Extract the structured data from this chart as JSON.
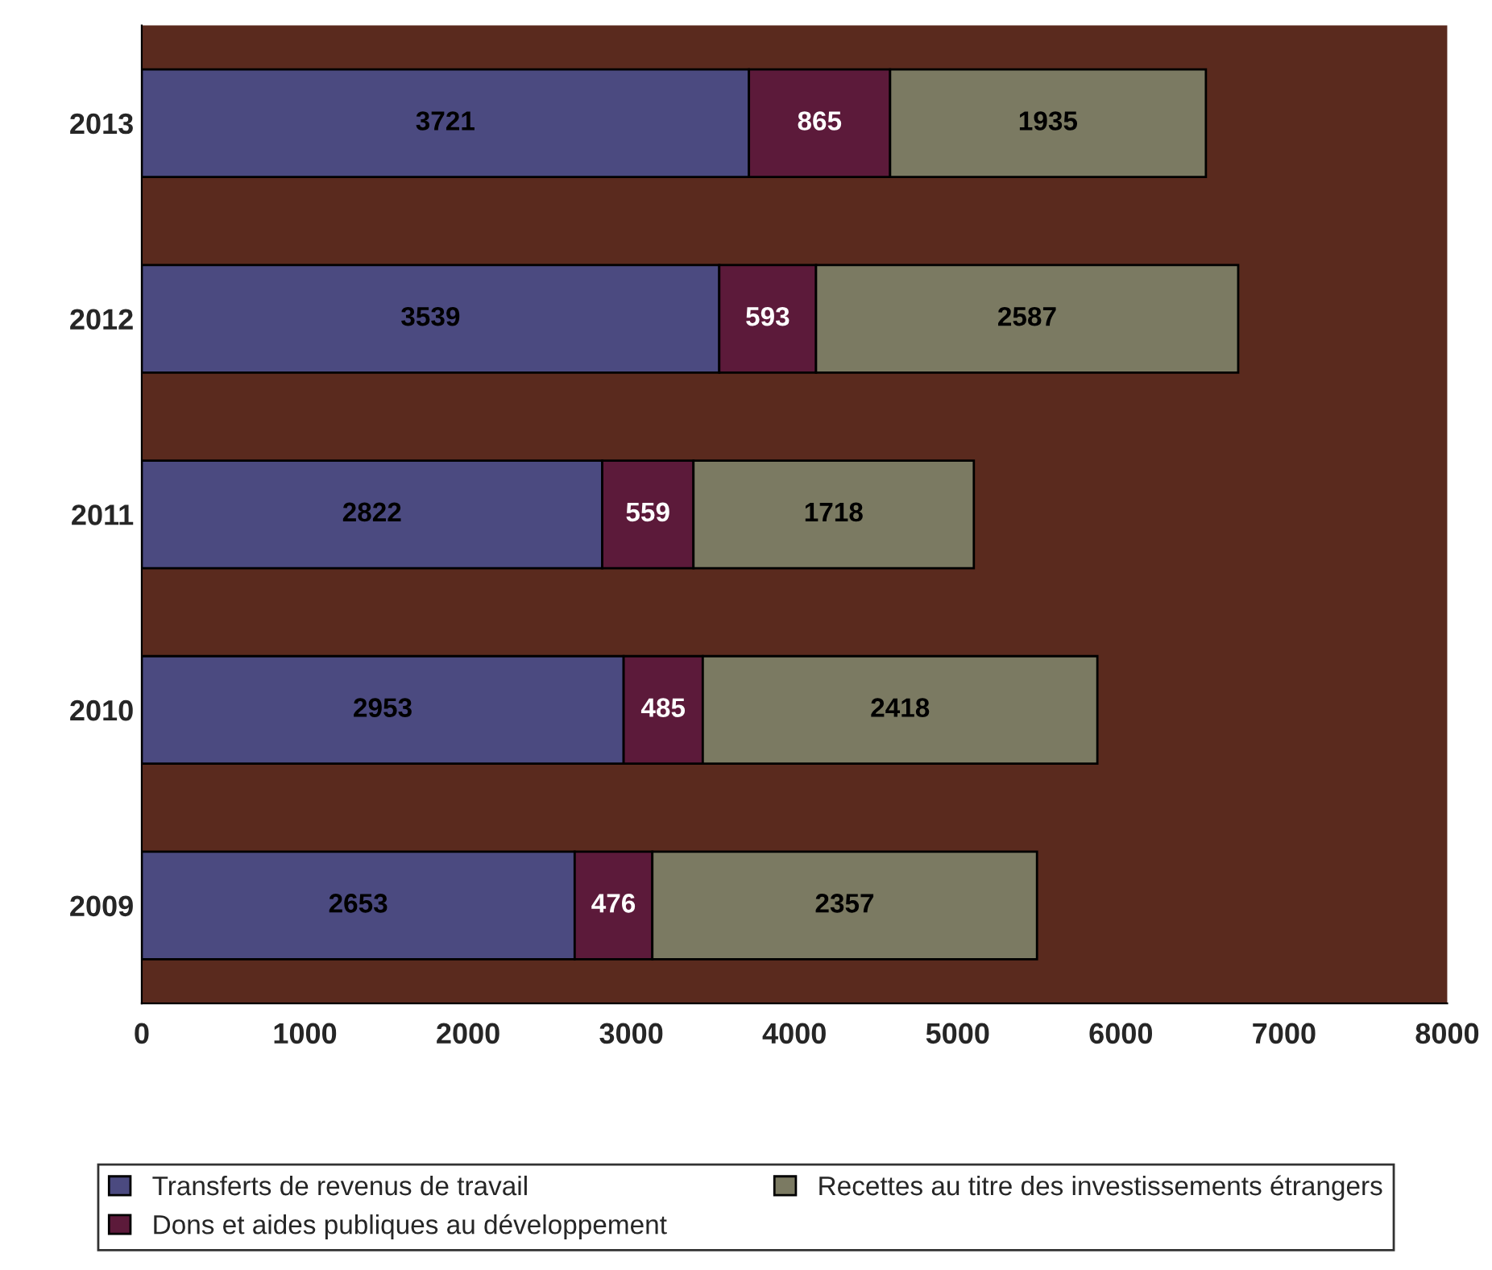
{
  "chart_data": {
    "type": "bar",
    "orientation": "horizontal",
    "stacked": true,
    "categories": [
      "2013",
      "2012",
      "2011",
      "2010",
      "2009"
    ],
    "series": [
      {
        "name": "Transferts de revenus de travail",
        "color": "#4b4a80",
        "values": [
          3721,
          3539,
          2822,
          2953,
          2653
        ]
      },
      {
        "name": "Dons et aides publiques au développement",
        "color": "#5c1a3a",
        "values": [
          865,
          593,
          559,
          485,
          476
        ]
      },
      {
        "name": "Recettes au titre des investissements étrangers",
        "color": "#7b7a62",
        "values": [
          1935,
          2587,
          1718,
          2418,
          2357
        ]
      }
    ],
    "xlim": [
      0,
      8000
    ],
    "xticks": [
      0,
      1000,
      2000,
      3000,
      4000,
      5000,
      6000,
      7000,
      8000
    ],
    "data_labels": true,
    "grid": false,
    "legend": "bottom"
  }
}
